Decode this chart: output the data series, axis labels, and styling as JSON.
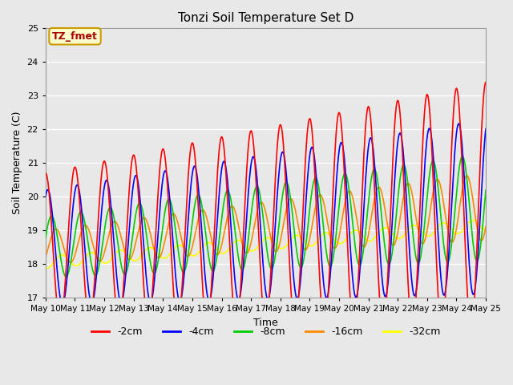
{
  "title": "Tonzi Soil Temperature Set D",
  "xlabel": "Time",
  "ylabel": "Soil Temperature (C)",
  "ylim": [
    17.0,
    25.0
  ],
  "yticks": [
    17.0,
    18.0,
    19.0,
    20.0,
    21.0,
    22.0,
    23.0,
    24.0,
    25.0
  ],
  "x_tick_labels": [
    "May 10",
    "May 11",
    "May 12",
    "May 13",
    "May 14",
    "May 15",
    "May 16",
    "May 17",
    "May 18",
    "May 19",
    "May 20",
    "May 21",
    "May 22",
    "May 23",
    "May 24",
    "May 25"
  ],
  "annotation_text": "TZ_fmet",
  "annotation_color": "#aa0000",
  "annotation_bg": "#ffffcc",
  "annotation_border": "#cc9900",
  "line_colors": {
    "-2cm": "#ff0000",
    "-4cm": "#0000ff",
    "-8cm": "#00cc00",
    "-16cm": "#ff8800",
    "-32cm": "#ffff00"
  },
  "bg_color": "#e8e8e8",
  "plot_bg_color": "#e8e8e8",
  "grid_color": "#ffffff",
  "legend_labels": [
    "-2cm",
    "-4cm",
    "-8cm",
    "-16cm",
    "-32cm"
  ]
}
